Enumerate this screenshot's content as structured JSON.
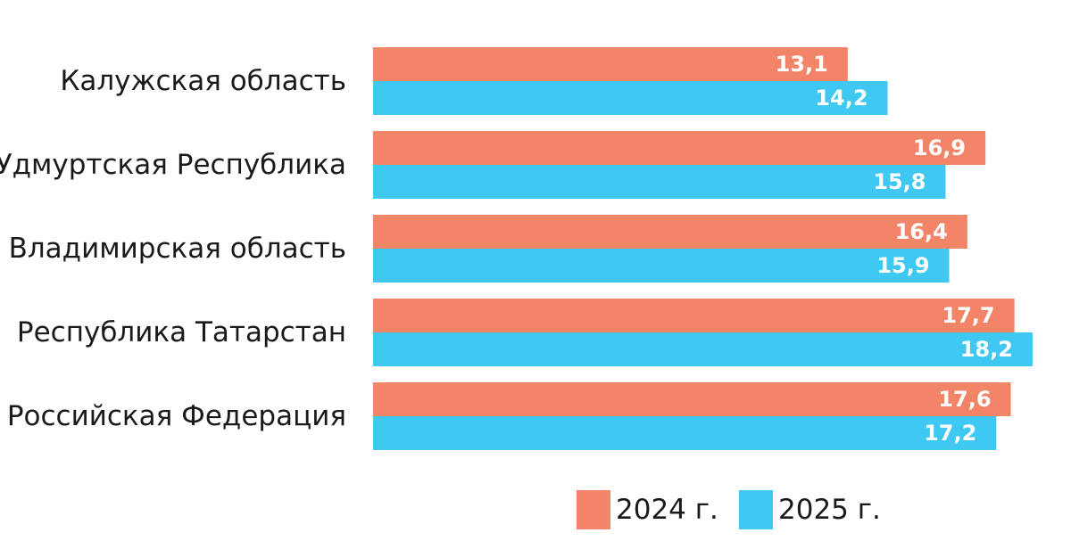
{
  "chart_data": {
    "type": "bar",
    "orientation": "horizontal",
    "categories": [
      "Калужская область",
      "Удмуртская Республика",
      "Владимирская область",
      "Республика Татарстан",
      "Российская Федерация"
    ],
    "series": [
      {
        "name": "2024 г.",
        "color": "#f28468",
        "values": [
          13.1,
          16.9,
          16.4,
          17.7,
          17.6
        ],
        "labels": [
          "13,1",
          "16,9",
          "16,4",
          "17,7",
          "17,6"
        ]
      },
      {
        "name": "2025 г.",
        "color": "#3ec8f2",
        "values": [
          14.2,
          15.8,
          15.9,
          18.2,
          17.2
        ],
        "labels": [
          "14,2",
          "15,8",
          "15,9",
          "18,2",
          "17,2"
        ]
      }
    ],
    "title": "",
    "xlabel": "",
    "ylabel": "",
    "grid": false,
    "legend_position": "bottom-right"
  }
}
